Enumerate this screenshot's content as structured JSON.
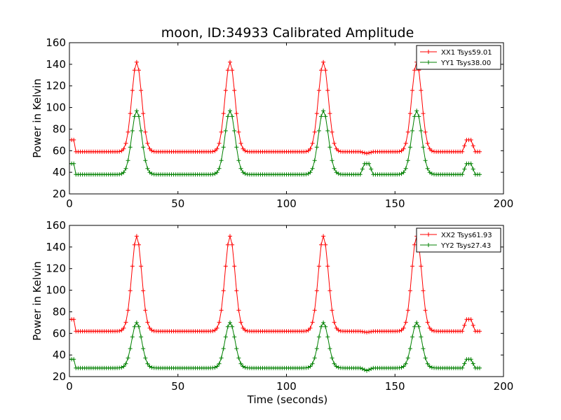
{
  "chart_data": [
    {
      "type": "line",
      "title": "moon, ID:34933 Calibrated Amplitude",
      "xlabel": "",
      "ylabel": "Power in Kelvin",
      "xlim": [
        0,
        200
      ],
      "ylim": [
        20,
        160
      ],
      "x_ticks": [
        0,
        50,
        100,
        150,
        200
      ],
      "y_ticks": [
        20,
        40,
        60,
        80,
        100,
        120,
        140,
        160
      ],
      "legend_position": "top-right",
      "grid": false,
      "series": [
        {
          "name": "XX1 Tsys59.01",
          "color": "#ff0000",
          "marker": "plus",
          "baseline_segments": [
            [
              0,
              3,
              70
            ],
            [
              3,
              189,
              59
            ]
          ],
          "peaks": [
            [
              31,
              142
            ],
            [
              74,
              142
            ],
            [
              117,
              142
            ],
            [
              160,
              142
            ]
          ],
          "blips": [
            [
              184,
              70
            ]
          ],
          "dips": [
            [
              137,
              57.5
            ]
          ]
        },
        {
          "name": "YY1 Tsys38.00",
          "color": "#008000",
          "marker": "plus",
          "baseline_segments": [
            [
              0,
              3,
              48
            ],
            [
              3,
              189,
              38
            ]
          ],
          "peaks": [
            [
              31,
              97
            ],
            [
              74,
              97
            ],
            [
              117,
              97
            ],
            [
              160,
              97
            ]
          ],
          "blips": [
            [
              137,
              48
            ],
            [
              184,
              48
            ]
          ],
          "dips": []
        }
      ]
    },
    {
      "type": "line",
      "title": "",
      "xlabel": "Time (seconds)",
      "ylabel": "Power in Kelvin",
      "xlim": [
        0,
        200
      ],
      "ylim": [
        20,
        160
      ],
      "x_ticks": [
        0,
        50,
        100,
        150,
        200
      ],
      "y_ticks": [
        20,
        40,
        60,
        80,
        100,
        120,
        140,
        160
      ],
      "legend_position": "top-right",
      "grid": false,
      "series": [
        {
          "name": "XX2 Tsys61.93",
          "color": "#ff0000",
          "marker": "plus",
          "baseline_segments": [
            [
              0,
              3,
              73
            ],
            [
              3,
              189,
              62
            ]
          ],
          "peaks": [
            [
              31,
              150
            ],
            [
              74,
              150
            ],
            [
              117,
              150
            ],
            [
              160,
              150
            ]
          ],
          "blips": [
            [
              184,
              73
            ]
          ],
          "dips": [
            [
              137,
              61
            ]
          ]
        },
        {
          "name": "YY2 Tsys27.43",
          "color": "#008000",
          "marker": "plus",
          "baseline_segments": [
            [
              0,
              3,
              36
            ],
            [
              3,
              189,
              28
            ]
          ],
          "peaks": [
            [
              31,
              70
            ],
            [
              74,
              70
            ],
            [
              117,
              70
            ],
            [
              160,
              70
            ]
          ],
          "blips": [
            [
              184,
              36
            ]
          ],
          "dips": [
            [
              137,
              25.5
            ]
          ]
        }
      ]
    }
  ]
}
